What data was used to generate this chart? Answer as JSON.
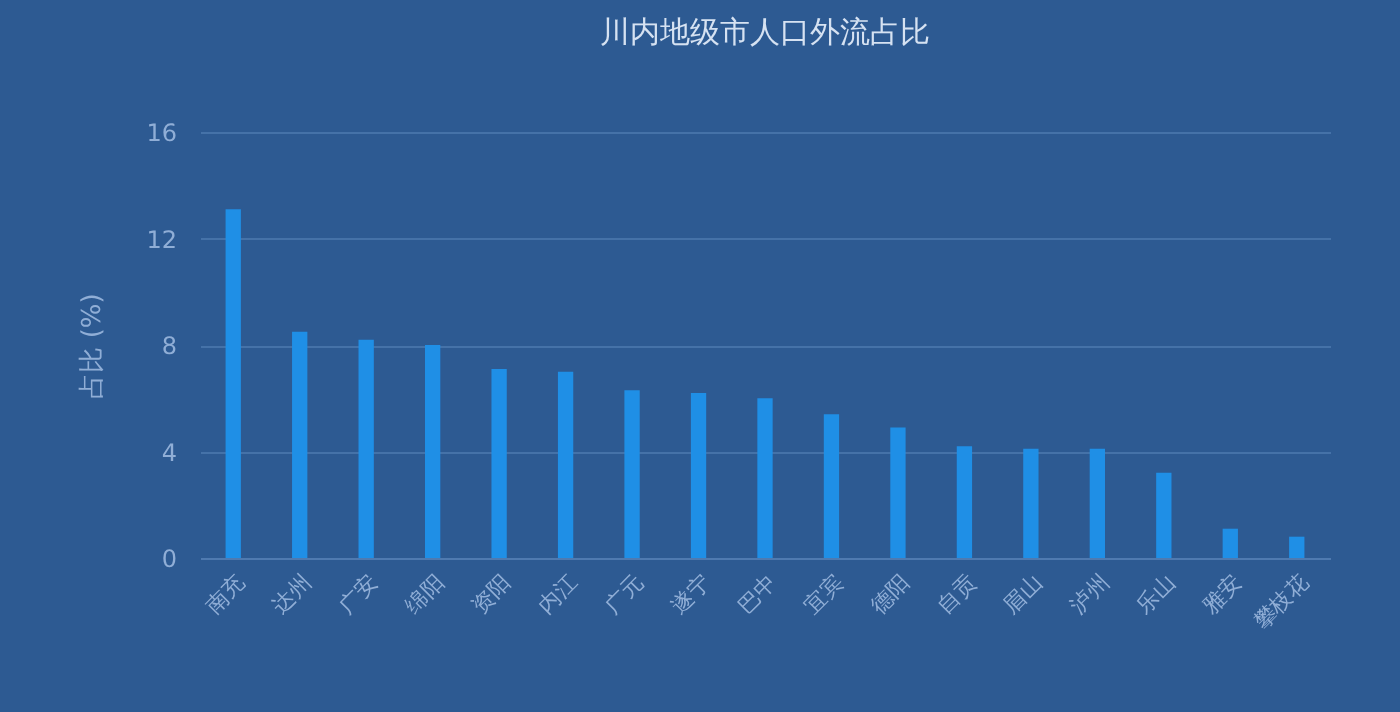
{
  "chart_data": {
    "type": "bar",
    "title": "川内地级市人口外流占比",
    "ylabel": "占比 (%)",
    "categories": [
      "南充",
      "达州",
      "广安",
      "绵阳",
      "资阳",
      "内江",
      "广元",
      "遂宁",
      "巴中",
      "宜宾",
      "德阳",
      "自贡",
      "眉山",
      "泸州",
      "乐山",
      "雅安",
      "攀枝花"
    ],
    "values": [
      13.1,
      8.5,
      8.2,
      8.0,
      7.1,
      7.0,
      6.3,
      6.2,
      6.0,
      5.4,
      4.9,
      4.2,
      4.1,
      4.1,
      3.2,
      1.1,
      0.8
    ],
    "color": "#1f8fe6",
    "ylim": [
      0,
      16
    ],
    "yticks": [
      0,
      4,
      8,
      12,
      16
    ],
    "grid": "y"
  }
}
